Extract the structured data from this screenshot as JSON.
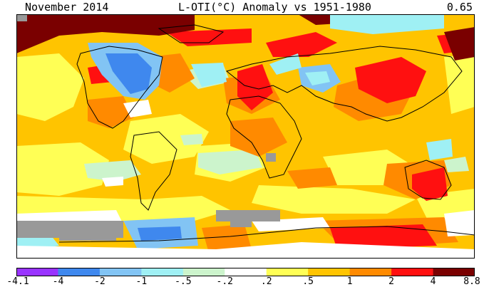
{
  "header": {
    "left": "November 2014",
    "center": "L-OTI(°C) Anomaly vs 1951-1980",
    "right": "0.65"
  },
  "colorbar": {
    "labels": [
      "-4.1",
      "-4",
      "-2",
      "-1",
      "-.5",
      "-.2",
      ".2",
      ".5",
      "1",
      "2",
      "4",
      "8.8"
    ],
    "colors": [
      "#9933ff",
      "#3f88ee",
      "#82c4f4",
      "#9ff0f4",
      "#ccf4cc",
      "#ffffff",
      "#ffff55",
      "#ffc400",
      "#ff8a00",
      "#ff1010",
      "#7a0000"
    ]
  },
  "map": {
    "missing_color": "#999999",
    "land_outline": "#000000"
  }
}
